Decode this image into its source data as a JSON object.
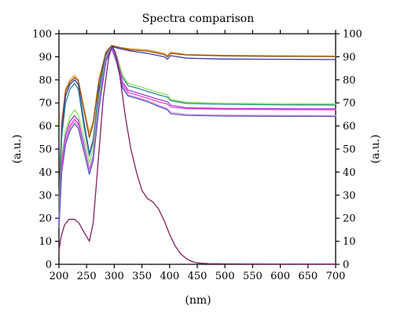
{
  "chart_data": {
    "type": "line",
    "title": "Spectra comparison",
    "xlabel": "(nm)",
    "ylabel_left": "(a.u.)",
    "ylabel_right": "(a.u.)",
    "xlim": [
      200,
      700
    ],
    "ylim": [
      0,
      100
    ],
    "x_ticks": [
      200,
      250,
      300,
      350,
      400,
      450,
      500,
      550,
      600,
      650,
      700
    ],
    "y_ticks": [
      0,
      10,
      20,
      30,
      40,
      50,
      60,
      70,
      80,
      90,
      100
    ],
    "grid": false,
    "series": [
      {
        "color": "#e8a030",
        "points": [
          [
            200,
            28
          ],
          [
            205,
            62
          ],
          [
            212,
            76
          ],
          [
            220,
            80
          ],
          [
            228,
            82
          ],
          [
            235,
            80
          ],
          [
            245,
            68
          ],
          [
            255,
            57
          ],
          [
            262,
            62
          ],
          [
            272,
            80
          ],
          [
            285,
            92
          ],
          [
            295,
            95
          ],
          [
            310,
            94
          ],
          [
            330,
            93.5
          ],
          [
            360,
            93
          ],
          [
            390,
            91.5
          ],
          [
            396,
            90.5
          ],
          [
            402,
            92
          ],
          [
            430,
            91
          ],
          [
            500,
            90.6
          ],
          [
            600,
            90.4
          ],
          [
            700,
            90.3
          ]
        ]
      },
      {
        "color": "#8b4a10",
        "points": [
          [
            200,
            26
          ],
          [
            205,
            60
          ],
          [
            212,
            75
          ],
          [
            220,
            79
          ],
          [
            228,
            81
          ],
          [
            235,
            79.5
          ],
          [
            245,
            67
          ],
          [
            255,
            55
          ],
          [
            262,
            61
          ],
          [
            272,
            79
          ],
          [
            285,
            92
          ],
          [
            295,
            94.8
          ],
          [
            310,
            94
          ],
          [
            330,
            93
          ],
          [
            360,
            92.5
          ],
          [
            390,
            91
          ],
          [
            396,
            90
          ],
          [
            402,
            91.5
          ],
          [
            430,
            90.8
          ],
          [
            500,
            90.4
          ],
          [
            600,
            90.2
          ],
          [
            700,
            90.1
          ]
        ]
      },
      {
        "color": "#3a3aa8",
        "points": [
          [
            200,
            25
          ],
          [
            205,
            58
          ],
          [
            212,
            73
          ],
          [
            220,
            78
          ],
          [
            228,
            80
          ],
          [
            235,
            78
          ],
          [
            245,
            62
          ],
          [
            255,
            48
          ],
          [
            262,
            54
          ],
          [
            272,
            76
          ],
          [
            285,
            91
          ],
          [
            295,
            94.5
          ],
          [
            310,
            93.5
          ],
          [
            330,
            92.5
          ],
          [
            360,
            91.5
          ],
          [
            390,
            90
          ],
          [
            396,
            89
          ],
          [
            402,
            90.5
          ],
          [
            430,
            89.4
          ],
          [
            500,
            89
          ],
          [
            600,
            88.9
          ],
          [
            700,
            88.8
          ]
        ]
      },
      {
        "color": "#2a8a8a",
        "points": [
          [
            200,
            22
          ],
          [
            205,
            55
          ],
          [
            212,
            70
          ],
          [
            220,
            76
          ],
          [
            228,
            78.5
          ],
          [
            235,
            76
          ],
          [
            245,
            60
          ],
          [
            255,
            47
          ],
          [
            262,
            53
          ],
          [
            272,
            74
          ],
          [
            285,
            90
          ],
          [
            295,
            94.5
          ],
          [
            305,
            90
          ],
          [
            315,
            81
          ],
          [
            325,
            77.5
          ],
          [
            340,
            76.5
          ],
          [
            360,
            75
          ],
          [
            380,
            73.5
          ],
          [
            396,
            72.5
          ],
          [
            402,
            71
          ],
          [
            430,
            69.8
          ],
          [
            500,
            69.4
          ],
          [
            600,
            69.2
          ],
          [
            700,
            69.1
          ]
        ]
      },
      {
        "color": "#90e060",
        "points": [
          [
            200,
            20
          ],
          [
            205,
            46
          ],
          [
            212,
            58
          ],
          [
            220,
            64
          ],
          [
            228,
            67
          ],
          [
            235,
            65
          ],
          [
            245,
            55
          ],
          [
            255,
            44
          ],
          [
            262,
            50
          ],
          [
            272,
            72
          ],
          [
            285,
            90
          ],
          [
            295,
            94.5
          ],
          [
            305,
            90
          ],
          [
            315,
            82
          ],
          [
            325,
            78.5
          ],
          [
            340,
            77.5
          ],
          [
            360,
            76
          ],
          [
            380,
            74.5
          ],
          [
            396,
            73.5
          ],
          [
            402,
            71.5
          ],
          [
            430,
            70.3
          ],
          [
            500,
            69.9
          ],
          [
            600,
            69.7
          ],
          [
            700,
            69.6
          ]
        ]
      },
      {
        "color": "#a040d0",
        "points": [
          [
            200,
            18
          ],
          [
            205,
            44
          ],
          [
            212,
            56
          ],
          [
            220,
            62
          ],
          [
            228,
            64.5
          ],
          [
            235,
            62.5
          ],
          [
            245,
            52
          ],
          [
            255,
            41
          ],
          [
            262,
            47
          ],
          [
            272,
            70
          ],
          [
            285,
            89
          ],
          [
            295,
            94.3
          ],
          [
            305,
            89
          ],
          [
            315,
            79
          ],
          [
            325,
            75.5
          ],
          [
            340,
            74.5
          ],
          [
            360,
            73
          ],
          [
            380,
            71.5
          ],
          [
            396,
            70.5
          ],
          [
            402,
            69
          ],
          [
            430,
            67.9
          ],
          [
            500,
            67.6
          ],
          [
            600,
            67.5
          ],
          [
            700,
            67.4
          ]
        ]
      },
      {
        "color": "#f040d0",
        "points": [
          [
            200,
            17
          ],
          [
            205,
            42
          ],
          [
            212,
            54
          ],
          [
            220,
            60
          ],
          [
            228,
            63
          ],
          [
            235,
            61
          ],
          [
            245,
            51
          ],
          [
            255,
            40
          ],
          [
            262,
            46
          ],
          [
            272,
            69
          ],
          [
            285,
            88.5
          ],
          [
            295,
            94.2
          ],
          [
            305,
            88
          ],
          [
            315,
            78
          ],
          [
            325,
            74.5
          ],
          [
            340,
            73.5
          ],
          [
            360,
            72
          ],
          [
            380,
            70.5
          ],
          [
            396,
            69.5
          ],
          [
            402,
            68.2
          ],
          [
            430,
            67.5
          ],
          [
            500,
            67.2
          ],
          [
            600,
            67.1
          ],
          [
            700,
            67
          ]
        ]
      },
      {
        "color": "#d8a0d8",
        "points": [
          [
            200,
            16
          ],
          [
            205,
            40
          ],
          [
            212,
            53
          ],
          [
            220,
            59
          ],
          [
            228,
            62
          ],
          [
            235,
            60
          ],
          [
            245,
            50
          ],
          [
            255,
            40
          ],
          [
            262,
            46
          ],
          [
            272,
            68
          ],
          [
            285,
            88
          ],
          [
            295,
            94
          ],
          [
            305,
            87
          ],
          [
            315,
            77
          ],
          [
            325,
            73.5
          ],
          [
            340,
            72.5
          ],
          [
            360,
            71
          ],
          [
            380,
            69
          ],
          [
            396,
            67.5
          ],
          [
            402,
            66
          ],
          [
            430,
            65
          ],
          [
            500,
            64.7
          ],
          [
            600,
            64.6
          ],
          [
            700,
            64.5
          ]
        ]
      },
      {
        "color": "#5858c8",
        "points": [
          [
            200,
            16
          ],
          [
            205,
            40
          ],
          [
            212,
            52
          ],
          [
            220,
            58
          ],
          [
            228,
            61
          ],
          [
            235,
            59
          ],
          [
            245,
            49
          ],
          [
            255,
            39
          ],
          [
            262,
            45
          ],
          [
            272,
            67
          ],
          [
            285,
            88
          ],
          [
            295,
            94
          ],
          [
            305,
            87
          ],
          [
            315,
            76.5
          ],
          [
            325,
            73
          ],
          [
            340,
            72
          ],
          [
            360,
            70.5
          ],
          [
            380,
            68.5
          ],
          [
            396,
            67
          ],
          [
            402,
            65.3
          ],
          [
            430,
            64.6
          ],
          [
            500,
            64.3
          ],
          [
            600,
            64.2
          ],
          [
            700,
            64.1
          ]
        ]
      },
      {
        "color": "#802060",
        "points": [
          [
            200,
            6
          ],
          [
            204,
            12
          ],
          [
            210,
            17
          ],
          [
            218,
            19.5
          ],
          [
            228,
            19.5
          ],
          [
            236,
            18
          ],
          [
            245,
            14
          ],
          [
            255,
            10
          ],
          [
            262,
            18
          ],
          [
            270,
            42
          ],
          [
            280,
            72
          ],
          [
            290,
            90
          ],
          [
            296,
            94.5
          ],
          [
            302,
            92
          ],
          [
            310,
            82
          ],
          [
            320,
            64
          ],
          [
            330,
            50
          ],
          [
            340,
            40
          ],
          [
            350,
            32
          ],
          [
            360,
            28.5
          ],
          [
            370,
            27
          ],
          [
            380,
            24
          ],
          [
            390,
            19
          ],
          [
            400,
            13
          ],
          [
            410,
            8
          ],
          [
            420,
            4.5
          ],
          [
            430,
            2.5
          ],
          [
            440,
            1.2
          ],
          [
            450,
            0.6
          ],
          [
            470,
            0.3
          ],
          [
            500,
            0.2
          ],
          [
            600,
            0.1
          ],
          [
            700,
            0.1
          ]
        ]
      }
    ]
  }
}
